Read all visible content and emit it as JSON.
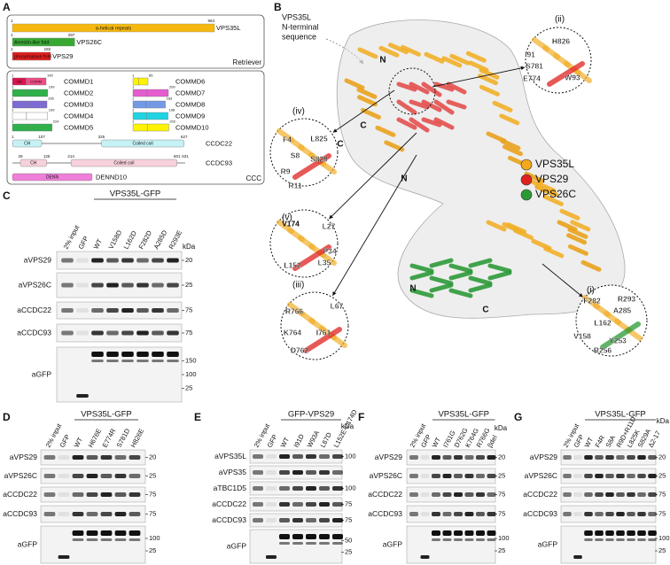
{
  "panel_a": {
    "label": "A",
    "retriever": [
      {
        "start": 1,
        "end": 963,
        "domain": "α-helical repeats",
        "name": "VPS35L"
      },
      {
        "start": 1,
        "end": 297,
        "domain": "Arrestin-like fold",
        "name": "VPS26C"
      },
      {
        "start": 1,
        "end": 182,
        "domain": "phosphatase fold",
        "name": "VPS29"
      }
    ],
    "retriever_label": "Retriever",
    "commd": [
      {
        "start": 1,
        "end": 190,
        "domains": [
          "HN",
          "COMM"
        ],
        "name": "COMMD1"
      },
      {
        "start": 1,
        "end": 199,
        "name": "COMMD2"
      },
      {
        "start": 1,
        "end": 195,
        "name": "COMMD3"
      },
      {
        "start": 1,
        "end": 199,
        "name": "COMMD4"
      },
      {
        "start": 1,
        "end": 224,
        "name": "COMMD5"
      },
      {
        "start": 1,
        "end": 85,
        "name": "COMMD6"
      },
      {
        "start": 1,
        "end": 200,
        "name": "COMMD7"
      },
      {
        "start": 1,
        "end": 183,
        "name": "COMMD8"
      },
      {
        "start": 1,
        "end": 198,
        "name": "COMMD9"
      },
      {
        "start": 1,
        "end": 202,
        "name": "COMMD10"
      }
    ],
    "ccdc": [
      {
        "positions": [
          1,
          107,
          325,
          627
        ],
        "domains": [
          "CH",
          "Coiled coil"
        ],
        "name": "CCDC22"
      },
      {
        "positions": [
          29,
          125,
          214,
          601,
          631
        ],
        "domains": [
          "CH",
          "Coiled coil"
        ],
        "name": "CCDC93"
      }
    ],
    "dennd10": {
      "domain": "DENN",
      "name": "DENND10"
    },
    "ccc_label": "CCC"
  },
  "panel_b": {
    "label": "B",
    "n_terminal_label": [
      "VPS35L",
      "N-terminal",
      "sequence"
    ],
    "termini": [
      "N",
      "C",
      "N",
      "C",
      "N",
      "C"
    ],
    "legend": [
      "VPS35L",
      "VPS29",
      "VPS26C"
    ],
    "insets": [
      {
        "label": "(ii)",
        "residues": [
          "H826",
          "I91",
          "W93",
          "S781",
          "E774"
        ]
      },
      {
        "label": "(iv)",
        "residues": [
          "F4",
          "L825",
          "S8",
          "S829",
          "R9",
          "R11"
        ]
      },
      {
        "label": "(v)",
        "residues": [
          "V174",
          "L27",
          "P34",
          "L35",
          "L152"
        ]
      },
      {
        "label": "(iii)",
        "residues": [
          "R766",
          "L67",
          "K764",
          "I761",
          "D762"
        ]
      },
      {
        "label": "(i)",
        "residues": [
          "F282",
          "R293",
          "A285",
          "L162",
          "V158",
          "Y253",
          "R256"
        ]
      }
    ]
  },
  "panel_c": {
    "label": "C",
    "construct": "VPS35L-GFP",
    "kda_label": "kDa",
    "lanes": [
      "2% input",
      "GFP",
      "WT",
      "V158D",
      "L162D",
      "F282D",
      "A285D",
      "R293E"
    ],
    "rows": [
      {
        "antibody": "aVPS29",
        "markers": [
          20
        ]
      },
      {
        "antibody": "aVPS26C",
        "markers": [
          25
        ]
      },
      {
        "antibody": "aCCDC22",
        "markers": [
          75
        ]
      },
      {
        "antibody": "aCCDC93",
        "markers": [
          75
        ]
      },
      {
        "antibody": "aGFP",
        "markers": [
          150,
          100,
          25
        ]
      }
    ]
  },
  "panel_d": {
    "label": "D",
    "construct": "VPS35L-GFP",
    "lanes": [
      "2% input",
      "GFP",
      "WT",
      "H676E",
      "E774R",
      "S781D",
      "H826E"
    ],
    "rows": [
      {
        "antibody": "aVPS29",
        "markers": [
          20
        ]
      },
      {
        "antibody": "aVPS26C",
        "markers": [
          25
        ]
      },
      {
        "antibody": "aCCDC22",
        "markers": [
          75
        ]
      },
      {
        "antibody": "aCCDC93",
        "markers": [
          75
        ]
      },
      {
        "antibody": "aGFP",
        "markers": [
          100,
          25
        ]
      }
    ]
  },
  "panel_e": {
    "label": "E",
    "construct": "GFP-VPS29",
    "kda_label": "kDa",
    "lanes": [
      "2% input",
      "GFP",
      "WT",
      "I91D",
      "W93A",
      "L67D",
      "L152E-V174D"
    ],
    "rows": [
      {
        "antibody": "aVPS35L",
        "markers": [
          100
        ]
      },
      {
        "antibody": "aVPS35",
        "markers": []
      },
      {
        "antibody": "aTBC1D5",
        "markers": [
          100
        ]
      },
      {
        "antibody": "aCCDC22",
        "markers": [
          75
        ]
      },
      {
        "antibody": "aCCDC93",
        "markers": [
          75
        ]
      },
      {
        "antibody": "aGFP",
        "markers": [
          50,
          25
        ]
      }
    ]
  },
  "panel_f": {
    "label": "F",
    "construct": "VPS35L-GFP",
    "kda_label": "kDa",
    "lanes": [
      "2% input",
      "GFP",
      "WT",
      "I761G",
      "D762G",
      "K764G",
      "R766G",
      "βdel"
    ],
    "rows": [
      {
        "antibody": "aVPS29",
        "markers": [
          20
        ]
      },
      {
        "antibody": "aVPS26C",
        "markers": [
          25
        ]
      },
      {
        "antibody": "aCCDC22",
        "markers": [
          75
        ]
      },
      {
        "antibody": "aCCDC93",
        "markers": [
          75
        ]
      },
      {
        "antibody": "aGFP",
        "markers": [
          100,
          25
        ]
      }
    ]
  },
  "panel_g": {
    "label": "G",
    "construct": "VPS35L-GFP",
    "kda_label": "kDa",
    "lanes": [
      "2% input",
      "GFP",
      "WT",
      "F4R",
      "S8A",
      "R9D+R11D",
      "L825K",
      "S829A",
      "Δ2-17"
    ],
    "rows": [
      {
        "antibody": "aVPS29",
        "markers": [
          20
        ]
      },
      {
        "antibody": "aVPS26C",
        "markers": [
          25
        ]
      },
      {
        "antibody": "aCCDC22",
        "markers": [
          75
        ]
      },
      {
        "antibody": "aCCDC93",
        "markers": [
          75
        ]
      },
      {
        "antibody": "aGFP",
        "markers": [
          100,
          25
        ]
      }
    ]
  }
}
